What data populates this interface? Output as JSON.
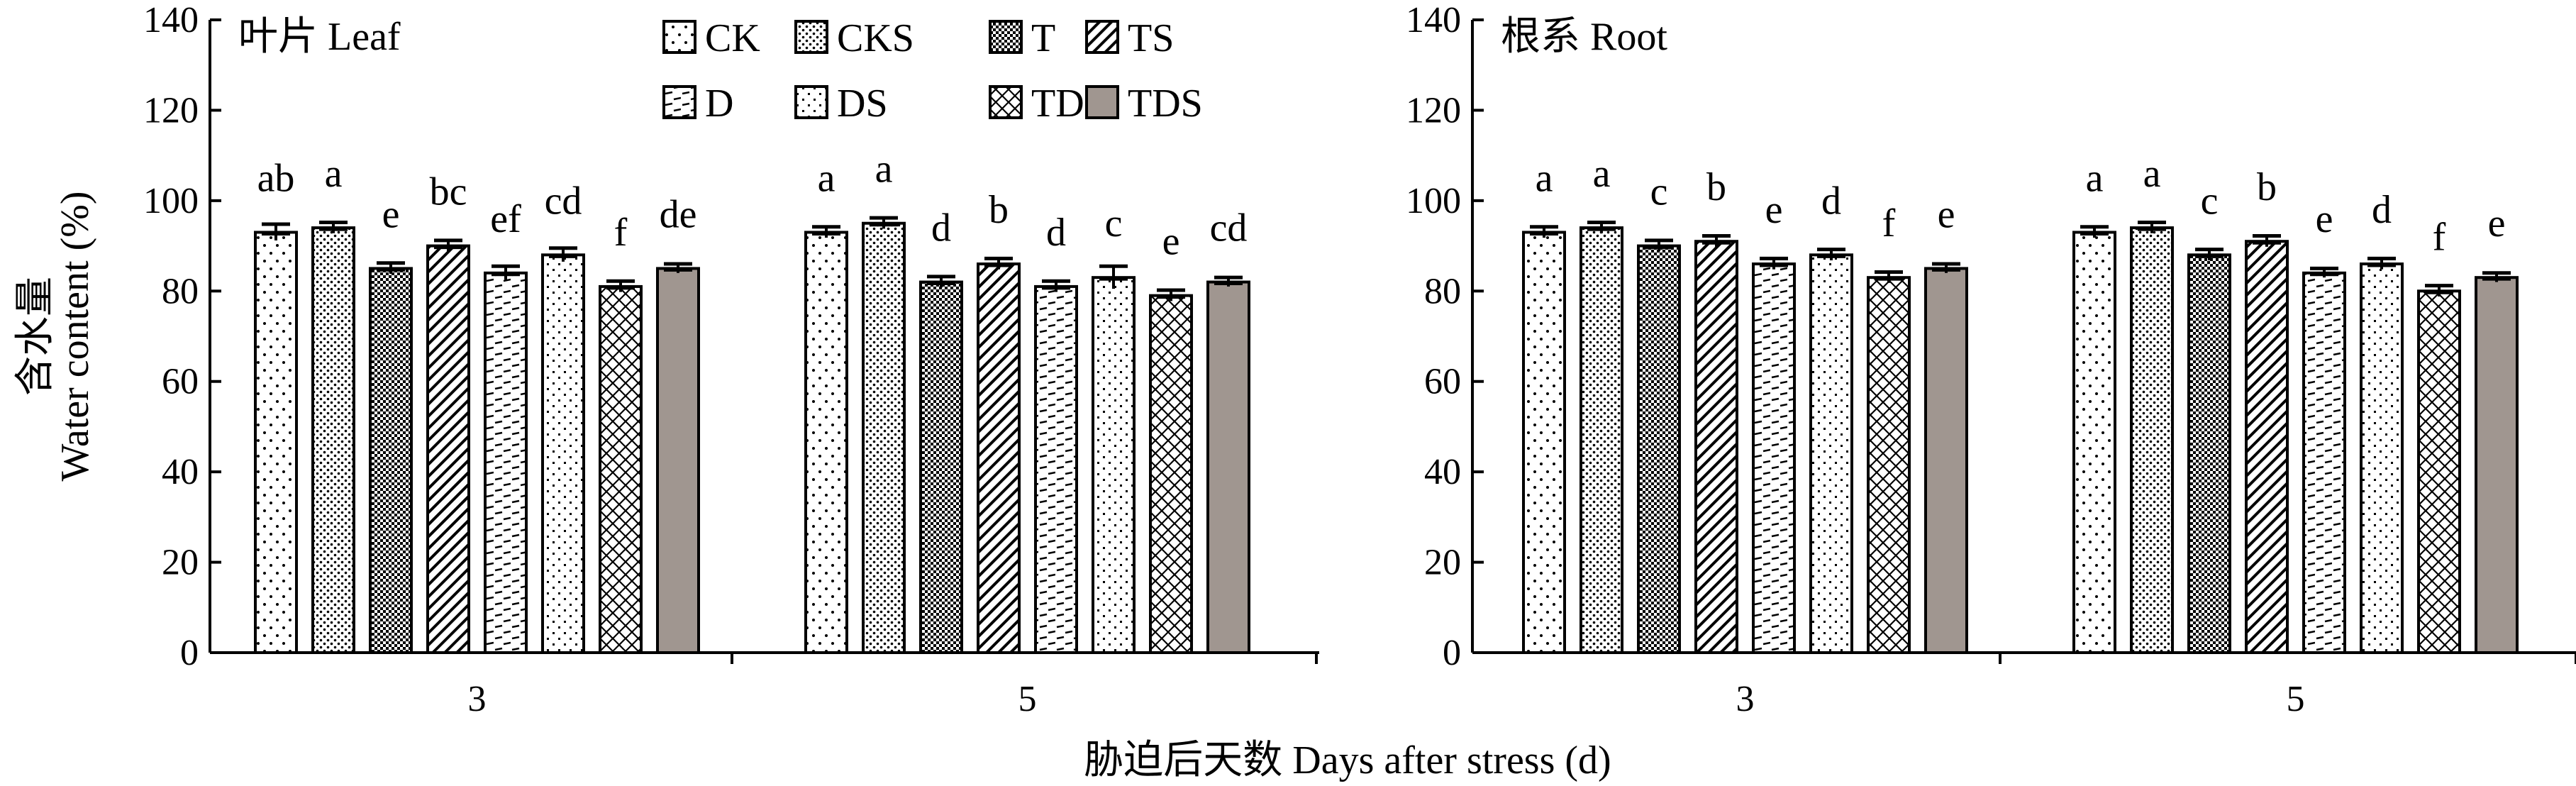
{
  "chart_data": [
    {
      "type": "bar",
      "title": "叶片 Leaf",
      "ylabel_cn": "含水量",
      "ylabel_en": "Water content (%)",
      "xlabel": "胁迫后天数 Days after stress (d)",
      "ylim": [
        0,
        140
      ],
      "yticks": [
        0,
        20,
        40,
        60,
        80,
        100,
        120,
        140
      ],
      "grid": false,
      "legend": "top-right",
      "categories": [
        "3",
        "5"
      ],
      "series": [
        {
          "name": "CK",
          "pattern": "dots-sparse",
          "values": [
            93,
            93
          ],
          "errors": [
            1.8,
            1.2
          ],
          "labels": [
            "ab",
            "a"
          ]
        },
        {
          "name": "CKS",
          "pattern": "dots-dense",
          "values": [
            94,
            95
          ],
          "errors": [
            1.2,
            1.2
          ],
          "labels": [
            "a",
            "a"
          ]
        },
        {
          "name": "T",
          "pattern": "checker",
          "values": [
            85,
            82
          ],
          "errors": [
            1.2,
            1.2
          ],
          "labels": [
            "e",
            "d"
          ]
        },
        {
          "name": "TS",
          "pattern": "diag",
          "values": [
            90,
            86
          ],
          "errors": [
            1.2,
            1.2
          ],
          "labels": [
            "bc",
            "b"
          ]
        },
        {
          "name": "D",
          "pattern": "dashes",
          "values": [
            84,
            81
          ],
          "errors": [
            1.5,
            1.2
          ],
          "labels": [
            "ef",
            "d"
          ]
        },
        {
          "name": "DS",
          "pattern": "dots-medium",
          "values": [
            88,
            83
          ],
          "errors": [
            1.5,
            2.5
          ],
          "labels": [
            "cd",
            "c"
          ]
        },
        {
          "name": "TD",
          "pattern": "crosshatch",
          "values": [
            81,
            79
          ],
          "errors": [
            1.2,
            1.2
          ],
          "labels": [
            "f",
            "e"
          ]
        },
        {
          "name": "TDS",
          "pattern": "solid-gray",
          "values": [
            85,
            82
          ],
          "errors": [
            1.0,
            1.0
          ],
          "labels": [
            "de",
            "cd"
          ]
        }
      ]
    },
    {
      "type": "bar",
      "title": "根系 Root",
      "ylim": [
        0,
        140
      ],
      "yticks": [
        0,
        20,
        40,
        60,
        80,
        100,
        120,
        140
      ],
      "grid": false,
      "categories": [
        "3",
        "5"
      ],
      "series": [
        {
          "name": "CK",
          "pattern": "dots-sparse",
          "values": [
            93,
            93
          ],
          "errors": [
            1.2,
            1.2
          ],
          "labels": [
            "a",
            "a"
          ]
        },
        {
          "name": "CKS",
          "pattern": "dots-dense",
          "values": [
            94,
            94
          ],
          "errors": [
            1.2,
            1.2
          ],
          "labels": [
            "a",
            "a"
          ]
        },
        {
          "name": "T",
          "pattern": "checker",
          "values": [
            90,
            88
          ],
          "errors": [
            1.2,
            1.2
          ],
          "labels": [
            "c",
            "c"
          ]
        },
        {
          "name": "TS",
          "pattern": "diag",
          "values": [
            91,
            91
          ],
          "errors": [
            1.2,
            1.2
          ],
          "labels": [
            "b",
            "b"
          ]
        },
        {
          "name": "D",
          "pattern": "dashes",
          "values": [
            86,
            84
          ],
          "errors": [
            1.2,
            1.0
          ],
          "labels": [
            "e",
            "e"
          ]
        },
        {
          "name": "DS",
          "pattern": "dots-medium",
          "values": [
            88,
            86
          ],
          "errors": [
            1.2,
            1.2
          ],
          "labels": [
            "d",
            "d"
          ]
        },
        {
          "name": "TD",
          "pattern": "crosshatch",
          "values": [
            83,
            80
          ],
          "errors": [
            1.2,
            1.2
          ],
          "labels": [
            "f",
            "f"
          ]
        },
        {
          "name": "TDS",
          "pattern": "solid-gray",
          "values": [
            85,
            83
          ],
          "errors": [
            1.0,
            1.0
          ],
          "labels": [
            "e",
            "e"
          ]
        }
      ]
    }
  ],
  "colors": {
    "bar_stroke": "#000000",
    "tds_fill": "#a09690",
    "background": "#ffffff"
  }
}
